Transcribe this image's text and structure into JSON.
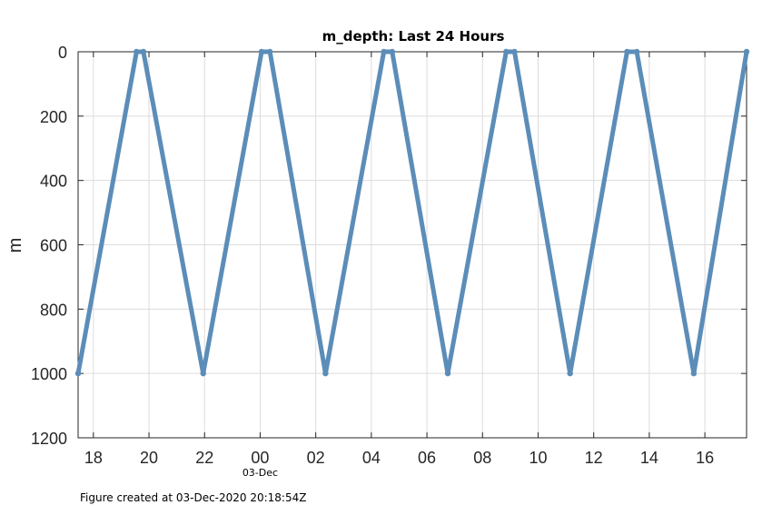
{
  "chart_data": {
    "type": "line",
    "title": "m_depth: Last 24 Hours",
    "xlabel": "",
    "ylabel": "m",
    "x_unit": "hours since 18:00 on 02-Dec",
    "xlim": [
      -0.55,
      23.5
    ],
    "ylim": [
      0,
      1200
    ],
    "y_reversed": true,
    "grid": true,
    "x_ticks": [
      0,
      2,
      4,
      6,
      8,
      10,
      12,
      14,
      16,
      18,
      20,
      22
    ],
    "x_tick_labels": [
      "18",
      "20",
      "22",
      "00",
      "02",
      "04",
      "06",
      "08",
      "10",
      "12",
      "14",
      "16"
    ],
    "y_ticks": [
      0,
      200,
      400,
      600,
      800,
      1000,
      1200
    ],
    "y_tick_labels": [
      "0",
      "200",
      "400",
      "600",
      "800",
      "1000",
      "1200"
    ],
    "date_label": "03-Dec",
    "series": [
      {
        "name": "m_depth",
        "color": "#5b8db8",
        "x": [
          -0.55,
          1.55,
          1.8,
          3.95,
          6.05,
          6.35,
          8.35,
          10.45,
          10.75,
          12.75,
          14.85,
          15.15,
          17.15,
          19.2,
          19.55,
          21.6,
          23.5
        ],
        "y": [
          1000,
          0,
          0,
          1000,
          0,
          0,
          1000,
          0,
          0,
          1000,
          0,
          0,
          1000,
          0,
          0,
          1000,
          0
        ]
      }
    ]
  },
  "footer": "Figure created at 03-Dec-2020 20:18:54Z"
}
